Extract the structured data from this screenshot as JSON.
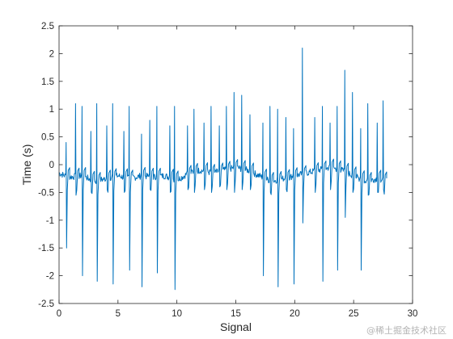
{
  "chart_data": {
    "type": "line",
    "xlabel": "Signal",
    "ylabel": "Time (s)",
    "xlim": [
      0,
      30
    ],
    "ylim": [
      -2.5,
      2.5
    ],
    "xticks": [
      0,
      5,
      10,
      15,
      20,
      25,
      30
    ],
    "yticks": [
      -2.5,
      -2,
      -1.5,
      -1,
      -0.5,
      0,
      0.5,
      1,
      1.5,
      2,
      2.5
    ],
    "grid": false,
    "line_color": "#0072BD",
    "baseline": [
      [
        0.0,
        -0.15
      ],
      [
        0.5,
        -0.2
      ],
      [
        1.0,
        -0.22
      ],
      [
        2.0,
        -0.2
      ],
      [
        3.0,
        -0.3
      ],
      [
        4.0,
        -0.25
      ],
      [
        5.0,
        -0.2
      ],
      [
        6.0,
        -0.25
      ],
      [
        7.0,
        -0.2
      ],
      [
        8.0,
        -0.22
      ],
      [
        9.0,
        -0.2
      ],
      [
        10.0,
        -0.28
      ],
      [
        11.0,
        -0.15
      ],
      [
        12.0,
        -0.1
      ],
      [
        13.0,
        -0.15
      ],
      [
        14.0,
        -0.1
      ],
      [
        15.0,
        -0.05
      ],
      [
        16.0,
        -0.1
      ],
      [
        17.0,
        -0.2
      ],
      [
        18.0,
        -0.3
      ],
      [
        19.0,
        -0.25
      ],
      [
        20.0,
        -0.2
      ],
      [
        21.0,
        -0.15
      ],
      [
        22.0,
        -0.1
      ],
      [
        23.0,
        -0.05
      ],
      [
        24.0,
        -0.1
      ],
      [
        25.0,
        -0.2
      ],
      [
        26.0,
        -0.3
      ],
      [
        27.0,
        -0.25
      ],
      [
        27.8,
        -0.3
      ]
    ],
    "beats": [
      {
        "t": 0.6,
        "peak": 0.4,
        "trough": -1.5
      },
      {
        "t": 1.4,
        "peak": 1.1,
        "trough": -0.55
      },
      {
        "t": 1.95,
        "peak": 1.05,
        "trough": -2.0
      },
      {
        "t": 2.7,
        "peak": 0.6,
        "trough": -0.5
      },
      {
        "t": 3.2,
        "peak": 1.1,
        "trough": -2.1
      },
      {
        "t": 4.05,
        "peak": 0.7,
        "trough": -0.45
      },
      {
        "t": 4.55,
        "peak": 1.1,
        "trough": -2.15
      },
      {
        "t": 5.5,
        "peak": 0.6,
        "trough": -0.5
      },
      {
        "t": 5.95,
        "peak": 1.05,
        "trough": -1.9
      },
      {
        "t": 7.0,
        "peak": 0.55,
        "trough": -2.2
      },
      {
        "t": 7.7,
        "peak": 0.8,
        "trough": -0.45
      },
      {
        "t": 8.3,
        "peak": 1.05,
        "trough": -1.95
      },
      {
        "t": 9.4,
        "peak": 0.7,
        "trough": -0.5
      },
      {
        "t": 9.8,
        "peak": 1.05,
        "trough": -2.25
      },
      {
        "t": 10.9,
        "peak": 0.7,
        "trough": -0.45
      },
      {
        "t": 11.45,
        "peak": 1.0,
        "trough": -0.5
      },
      {
        "t": 12.3,
        "peak": 0.75,
        "trough": -0.45
      },
      {
        "t": 12.9,
        "peak": 1.05,
        "trough": -0.5
      },
      {
        "t": 13.6,
        "peak": 0.7,
        "trough": -0.4
      },
      {
        "t": 14.2,
        "peak": 1.05,
        "trough": -0.45
      },
      {
        "t": 14.85,
        "peak": 1.3,
        "trough": -0.5
      },
      {
        "t": 15.5,
        "peak": 1.25,
        "trough": -0.45
      },
      {
        "t": 16.2,
        "peak": 0.9,
        "trough": -0.45
      },
      {
        "t": 17.3,
        "peak": 0.75,
        "trough": -2.0
      },
      {
        "t": 17.9,
        "peak": 1.05,
        "trough": -0.5
      },
      {
        "t": 18.55,
        "peak": 1.0,
        "trough": -2.2
      },
      {
        "t": 19.25,
        "peak": 0.85,
        "trough": -0.45
      },
      {
        "t": 19.9,
        "peak": 0.65,
        "trough": -2.15
      },
      {
        "t": 20.65,
        "peak": 2.1,
        "trough": -1.05
      },
      {
        "t": 21.7,
        "peak": 0.85,
        "trough": -0.5
      },
      {
        "t": 22.35,
        "peak": 1.05,
        "trough": -2.1
      },
      {
        "t": 23.0,
        "peak": 0.75,
        "trough": -0.45
      },
      {
        "t": 23.6,
        "peak": 1.05,
        "trough": -1.9
      },
      {
        "t": 24.25,
        "peak": 1.7,
        "trough": -0.95
      },
      {
        "t": 24.9,
        "peak": 1.3,
        "trough": -0.5
      },
      {
        "t": 25.6,
        "peak": 0.65,
        "trough": -1.9
      },
      {
        "t": 26.2,
        "peak": 1.1,
        "trough": -0.55
      },
      {
        "t": 27.0,
        "peak": 0.75,
        "trough": -0.5
      },
      {
        "t": 27.5,
        "peak": 1.15,
        "trough": -0.45
      }
    ]
  },
  "watermark": "@稀土掘金技术社区"
}
